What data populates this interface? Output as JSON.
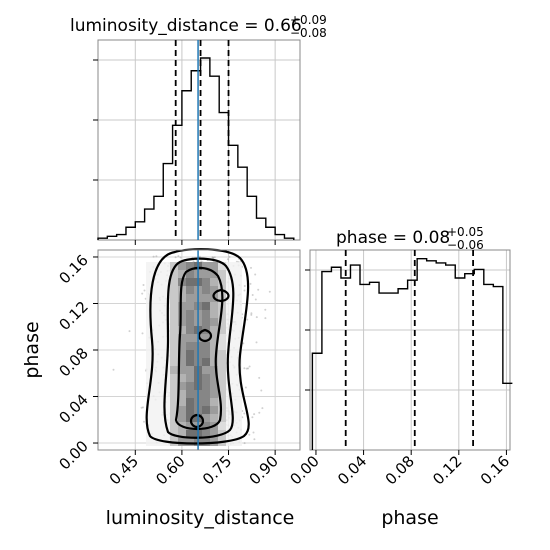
{
  "chart_data": [
    {
      "type": "histogram",
      "panel": "luminosity_distance marginal",
      "title": {
        "param": "luminosity_distance",
        "median": "0.66",
        "plus": "+0.09",
        "minus": "−0.08"
      },
      "xlim": [
        0.33,
        0.98
      ],
      "bin_edges": [
        0.33,
        0.36,
        0.39,
        0.42,
        0.45,
        0.48,
        0.51,
        0.54,
        0.57,
        0.6,
        0.63,
        0.66,
        0.69,
        0.72,
        0.75,
        0.78,
        0.81,
        0.84,
        0.87,
        0.9,
        0.93,
        0.96
      ],
      "counts": [
        0.01,
        0.02,
        0.03,
        0.07,
        0.1,
        0.17,
        0.24,
        0.42,
        0.63,
        0.82,
        0.93,
        1.0,
        0.9,
        0.7,
        0.52,
        0.4,
        0.24,
        0.12,
        0.07,
        0.03,
        0.01
      ],
      "quantiles": [
        0.58,
        0.66,
        0.75
      ],
      "truth": 0.652,
      "grid": true
    },
    {
      "type": "contour",
      "panel": "luminosity_distance vs phase",
      "xlabel": "luminosity_distance",
      "ylabel": "phase",
      "xlim": [
        0.33,
        0.98
      ],
      "ylim": [
        -0.006,
        0.166
      ],
      "xticks": [
        "0.45",
        "0.60",
        "0.75",
        "0.90"
      ],
      "xtick_values": [
        0.45,
        0.6,
        0.75,
        0.9
      ],
      "yticks": [
        "0.00",
        "0.04",
        "0.08",
        "0.12",
        "0.16"
      ],
      "ytick_values": [
        0.0,
        0.04,
        0.08,
        0.12,
        0.16
      ],
      "truth_x": 0.652,
      "grid": true
    },
    {
      "type": "histogram",
      "panel": "phase marginal",
      "title": {
        "param": "phase",
        "median": "0.08",
        "plus": "+0.05",
        "minus": "−0.06"
      },
      "xlabel": "phase",
      "xlim": [
        -0.005,
        0.163
      ],
      "xticks": [
        "0.00",
        "0.04",
        "0.08",
        "0.12",
        "0.16"
      ],
      "xtick_values": [
        0.0,
        0.04,
        0.08,
        0.12,
        0.16
      ],
      "bin_edges": [
        -0.003,
        0.005,
        0.013,
        0.021,
        0.029,
        0.037,
        0.045,
        0.053,
        0.061,
        0.069,
        0.077,
        0.085,
        0.093,
        0.101,
        0.109,
        0.117,
        0.125,
        0.133,
        0.141,
        0.149,
        0.157,
        0.165
      ],
      "counts": [
        0.45,
        0.83,
        0.85,
        0.8,
        0.86,
        0.77,
        0.78,
        0.73,
        0.73,
        0.75,
        0.79,
        0.89,
        0.88,
        0.87,
        0.86,
        0.8,
        0.82,
        0.84,
        0.77,
        0.76,
        0.31
      ],
      "quantiles": [
        0.025,
        0.083,
        0.132
      ],
      "grid": true
    }
  ]
}
